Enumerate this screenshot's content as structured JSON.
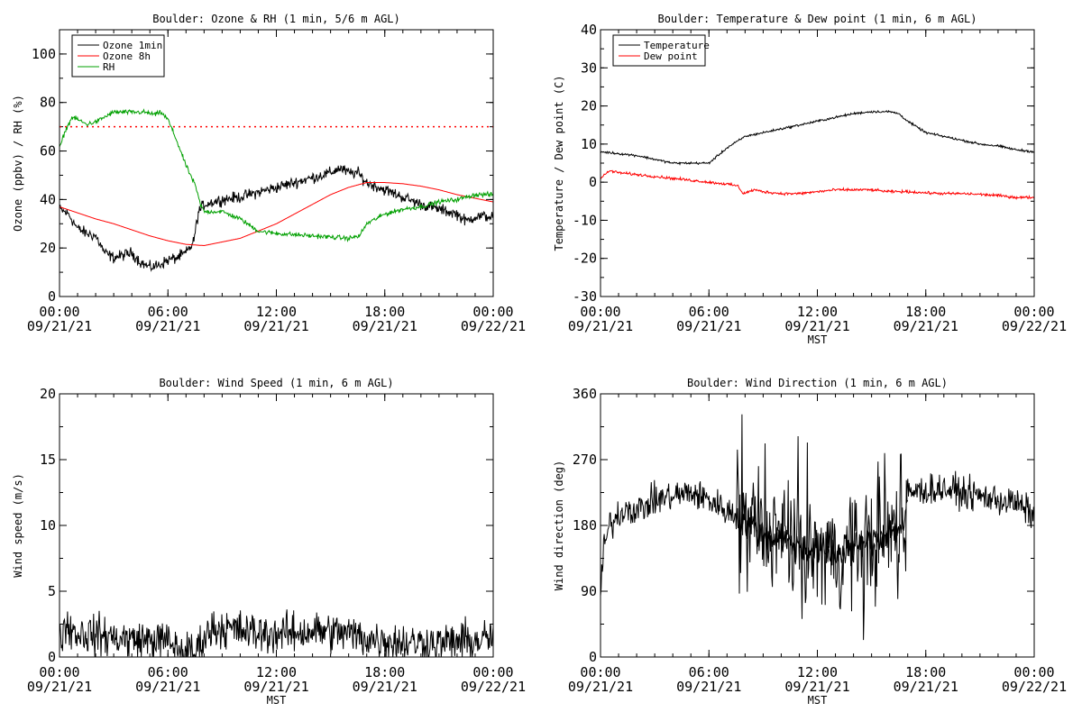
{
  "chart_data": [
    {
      "type": "line",
      "title": "Boulder: Ozone & RH (1 min, 5/6 m AGL)",
      "ylabel": "Ozone (ppbv) / RH (%)",
      "xlabel": "",
      "xlim": [
        0,
        24
      ],
      "ylim": [
        0,
        110
      ],
      "yticks": [
        0,
        20,
        40,
        60,
        80,
        100
      ],
      "xticks": [
        {
          "x": 0,
          "time": "00:00",
          "date": "09/21/21"
        },
        {
          "x": 6,
          "time": "06:00",
          "date": "09/21/21"
        },
        {
          "x": 12,
          "time": "12:00",
          "date": "09/21/21"
        },
        {
          "x": 18,
          "time": "18:00",
          "date": "09/21/21"
        },
        {
          "x": 24,
          "time": "00:00",
          "date": "09/22/21"
        }
      ],
      "legend": "top-left",
      "reference_line": {
        "y": 70,
        "color": "#ff0000",
        "style": "dotted"
      },
      "series": [
        {
          "name": "Ozone 1min",
          "color": "#000000",
          "noise": 2.0,
          "points": [
            [
              0,
              36
            ],
            [
              0.5,
              34
            ],
            [
              1,
              28
            ],
            [
              1.5,
              26
            ],
            [
              2,
              25
            ],
            [
              2.5,
              18
            ],
            [
              3,
              16
            ],
            [
              3.5,
              17
            ],
            [
              4,
              18
            ],
            [
              4.5,
              14
            ],
            [
              5,
              12
            ],
            [
              5.5,
              13
            ],
            [
              6,
              15
            ],
            [
              6.5,
              16
            ],
            [
              7,
              18
            ],
            [
              7.4,
              22
            ],
            [
              7.7,
              35
            ],
            [
              8,
              38
            ],
            [
              9,
              40
            ],
            [
              10,
              41
            ],
            [
              11,
              43
            ],
            [
              12,
              45
            ],
            [
              13,
              47
            ],
            [
              14,
              49
            ],
            [
              15,
              51
            ],
            [
              15.5,
              53
            ],
            [
              16,
              51
            ],
            [
              16.5,
              51
            ],
            [
              17,
              47
            ],
            [
              18,
              44
            ],
            [
              19,
              41
            ],
            [
              20,
              38
            ],
            [
              21,
              36
            ],
            [
              21.5,
              35
            ],
            [
              22,
              34
            ],
            [
              22.5,
              31
            ],
            [
              23,
              33
            ],
            [
              24,
              33
            ]
          ]
        },
        {
          "name": "Ozone 8h",
          "color": "#ff0000",
          "noise": 0,
          "points": [
            [
              0,
              37
            ],
            [
              1,
              34.5
            ],
            [
              2,
              32
            ],
            [
              3,
              30
            ],
            [
              4,
              27.5
            ],
            [
              5,
              25
            ],
            [
              6,
              23
            ],
            [
              7,
              21.5
            ],
            [
              8,
              21
            ],
            [
              9,
              22.5
            ],
            [
              10,
              24
            ],
            [
              11,
              27
            ],
            [
              12,
              30
            ],
            [
              13,
              34
            ],
            [
              14,
              38
            ],
            [
              15,
              42
            ],
            [
              16,
              45
            ],
            [
              17,
              47
            ],
            [
              18,
              47
            ],
            [
              19,
              46.5
            ],
            [
              20,
              45.5
            ],
            [
              21,
              44
            ],
            [
              22,
              42
            ],
            [
              23,
              40.5
            ],
            [
              24,
              39
            ]
          ]
        },
        {
          "name": "RH",
          "color": "#00a000",
          "noise": 0.8,
          "points": [
            [
              0,
              61
            ],
            [
              0.3,
              68
            ],
            [
              0.7,
              74
            ],
            [
              1,
              73
            ],
            [
              1.5,
              71
            ],
            [
              2,
              72
            ],
            [
              2.5,
              74
            ],
            [
              3,
              76
            ],
            [
              4,
              76
            ],
            [
              4.7,
              76
            ],
            [
              5.3,
              75
            ],
            [
              5.6,
              76
            ],
            [
              6,
              73
            ],
            [
              6.5,
              64
            ],
            [
              7,
              54
            ],
            [
              7.5,
              46
            ],
            [
              7.8,
              38
            ],
            [
              8,
              35
            ],
            [
              9,
              35
            ],
            [
              10,
              32
            ],
            [
              11,
              27
            ],
            [
              12,
              26
            ],
            [
              13,
              25.5
            ],
            [
              14,
              25
            ],
            [
              15,
              24.5
            ],
            [
              16,
              24
            ],
            [
              16.6,
              25
            ],
            [
              17,
              30
            ],
            [
              18,
              34
            ],
            [
              19,
              36
            ],
            [
              20,
              37
            ],
            [
              21,
              39
            ],
            [
              22,
              40
            ],
            [
              22.5,
              41
            ],
            [
              23,
              42
            ],
            [
              24,
              42
            ]
          ]
        }
      ]
    },
    {
      "type": "line",
      "title": "Boulder: Temperature & Dew point (1 min, 6 m AGL)",
      "ylabel": "Temperature / Dew point (C)",
      "xlabel": "MST",
      "xlim": [
        0,
        24
      ],
      "ylim": [
        -30,
        40
      ],
      "yticks": [
        -30,
        -20,
        -10,
        0,
        10,
        20,
        30,
        40
      ],
      "xticks": [
        {
          "x": 0,
          "time": "00:00",
          "date": "09/21/21"
        },
        {
          "x": 6,
          "time": "06:00",
          "date": "09/21/21"
        },
        {
          "x": 12,
          "time": "12:00",
          "date": "09/21/21"
        },
        {
          "x": 18,
          "time": "18:00",
          "date": "09/21/21"
        },
        {
          "x": 24,
          "time": "00:00",
          "date": "09/22/21"
        }
      ],
      "legend": "top-left",
      "series": [
        {
          "name": "Temperature",
          "color": "#000000",
          "noise": 0.25,
          "points": [
            [
              0,
              8
            ],
            [
              1,
              7.5
            ],
            [
              2,
              7
            ],
            [
              3,
              6
            ],
            [
              4,
              5
            ],
            [
              5,
              5
            ],
            [
              6,
              5
            ],
            [
              6.5,
              7
            ],
            [
              7,
              9
            ],
            [
              8,
              12
            ],
            [
              9,
              13
            ],
            [
              10,
              14
            ],
            [
              11,
              15
            ],
            [
              12,
              16
            ],
            [
              13,
              17
            ],
            [
              14,
              18
            ],
            [
              15,
              18.5
            ],
            [
              16,
              18.5
            ],
            [
              16.5,
              18
            ],
            [
              17,
              16
            ],
            [
              18,
              13
            ],
            [
              19,
              12
            ],
            [
              20,
              11
            ],
            [
              21,
              10
            ],
            [
              22,
              9.5
            ],
            [
              23,
              8.5
            ],
            [
              24,
              8
            ]
          ]
        },
        {
          "name": "Dew point",
          "color": "#ff0000",
          "noise": 0.3,
          "points": [
            [
              0,
              1
            ],
            [
              0.5,
              3
            ],
            [
              1,
              2.5
            ],
            [
              2,
              2
            ],
            [
              3,
              1.5
            ],
            [
              4,
              1
            ],
            [
              5,
              0.5
            ],
            [
              6,
              0
            ],
            [
              7,
              -0.5
            ],
            [
              7.6,
              -1
            ],
            [
              7.9,
              -3
            ],
            [
              8.5,
              -2
            ],
            [
              9,
              -2.5
            ],
            [
              10,
              -3
            ],
            [
              11,
              -3
            ],
            [
              12,
              -2.5
            ],
            [
              13,
              -2
            ],
            [
              14,
              -2
            ],
            [
              15,
              -2
            ],
            [
              16,
              -2.5
            ],
            [
              17,
              -2.5
            ],
            [
              18,
              -2.8
            ],
            [
              19,
              -3
            ],
            [
              20,
              -3
            ],
            [
              21,
              -3.2
            ],
            [
              22,
              -3.5
            ],
            [
              23,
              -4
            ],
            [
              24,
              -4
            ]
          ]
        }
      ]
    },
    {
      "type": "line",
      "title": "Boulder: Wind Speed (1 min, 6 m AGL)",
      "ylabel": "Wind speed (m/s)",
      "xlabel": "MST",
      "xlim": [
        0,
        24
      ],
      "ylim": [
        0,
        20
      ],
      "yticks": [
        0,
        5,
        10,
        15,
        20
      ],
      "xticks": [
        {
          "x": 0,
          "time": "00:00",
          "date": "09/21/21"
        },
        {
          "x": 6,
          "time": "06:00",
          "date": "09/21/21"
        },
        {
          "x": 12,
          "time": "12:00",
          "date": "09/21/21"
        },
        {
          "x": 18,
          "time": "18:00",
          "date": "09/21/21"
        },
        {
          "x": 24,
          "time": "00:00",
          "date": "09/22/21"
        }
      ],
      "series": [
        {
          "name": "",
          "color": "#000000",
          "noise": 1.3,
          "floor": 0,
          "points": [
            [
              0,
              1.2
            ],
            [
              0.3,
              2.5
            ],
            [
              1,
              1.8
            ],
            [
              2,
              1.7
            ],
            [
              3,
              1.5
            ],
            [
              4,
              1.3
            ],
            [
              5,
              1.3
            ],
            [
              6,
              1.2
            ],
            [
              6.5,
              0.6
            ],
            [
              7,
              0.4
            ],
            [
              7.5,
              0.3
            ],
            [
              8,
              1.5
            ],
            [
              8.5,
              2.2
            ],
            [
              9,
              2.2
            ],
            [
              10,
              2
            ],
            [
              11,
              1.8
            ],
            [
              12,
              1.8
            ],
            [
              13,
              1.8
            ],
            [
              14,
              2
            ],
            [
              15,
              1.9
            ],
            [
              16,
              1.8
            ],
            [
              17,
              1.4
            ],
            [
              18,
              1.3
            ],
            [
              19,
              1.1
            ],
            [
              20,
              1.1
            ],
            [
              21,
              1
            ],
            [
              22,
              1.2
            ],
            [
              23,
              1.2
            ],
            [
              24,
              1.5
            ]
          ]
        }
      ]
    },
    {
      "type": "line",
      "title": "Boulder: Wind Direction (1 min, 6 m AGL)",
      "ylabel": "Wind direction (deg)",
      "xlabel": "MST",
      "xlim": [
        0,
        24
      ],
      "ylim": [
        0,
        360
      ],
      "yticks": [
        0,
        90,
        180,
        270,
        360
      ],
      "xticks": [
        {
          "x": 0,
          "time": "00:00",
          "date": "09/21/21"
        },
        {
          "x": 6,
          "time": "06:00",
          "date": "09/21/21"
        },
        {
          "x": 12,
          "time": "12:00",
          "date": "09/21/21"
        },
        {
          "x": 18,
          "time": "18:00",
          "date": "09/21/21"
        },
        {
          "x": 24,
          "time": "00:00",
          "date": "09/22/21"
        }
      ],
      "series": [
        {
          "name": "",
          "color": "#000000",
          "noise": 18,
          "floor": 0,
          "ceil": 360,
          "points": [
            [
              0,
              90
            ],
            [
              0.2,
              150
            ],
            [
              0.5,
              180
            ],
            [
              1,
              195
            ],
            [
              1.5,
              205
            ],
            [
              2,
              200
            ],
            [
              3,
              215
            ],
            [
              4,
              220
            ],
            [
              5,
              225
            ],
            [
              6,
              215
            ],
            [
              7,
              200
            ],
            [
              8,
              185
            ],
            [
              9,
              170
            ],
            [
              10,
              160
            ],
            [
              11,
              150
            ],
            [
              12,
              145
            ],
            [
              13,
              140
            ],
            [
              14,
              150
            ],
            [
              15,
              160
            ],
            [
              16,
              170
            ],
            [
              16.8,
              180
            ],
            [
              17,
              225
            ],
            [
              18,
              228
            ],
            [
              19,
              230
            ],
            [
              20,
              225
            ],
            [
              21,
              220
            ],
            [
              22,
              215
            ],
            [
              23,
              210
            ],
            [
              24,
              195
            ]
          ]
        },
        {
          "name": "",
          "color": "#000000",
          "noise": 70,
          "floor": 5,
          "ceil": 360,
          "range": [
            7.5,
            17
          ]
        }
      ]
    }
  ]
}
